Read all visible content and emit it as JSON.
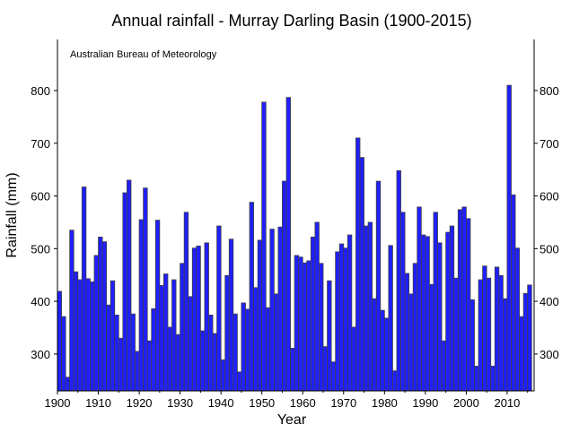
{
  "chart_data": {
    "type": "bar",
    "title": "Annual rainfall - Murray Darling Basin (1900-2015)",
    "annotation": "Australian Bureau of Meteorology",
    "xlabel": "Year",
    "ylabel": "Rainfall (mm)",
    "xlim": [
      1900,
      2016.6
    ],
    "ylim": [
      230,
      897
    ],
    "xticks": [
      1900,
      1910,
      1920,
      1930,
      1940,
      1950,
      1960,
      1970,
      1980,
      1990,
      2000,
      2010
    ],
    "yticks": [
      300,
      400,
      500,
      600,
      700,
      800
    ],
    "grid": false,
    "bar_color": "#1f1fff",
    "edge_color": "#404040",
    "start_year": 1900,
    "values": [
      419,
      371,
      256,
      535,
      456,
      441,
      617,
      443,
      437,
      487,
      522,
      513,
      393,
      439,
      374,
      330,
      606,
      630,
      376,
      305,
      555,
      615,
      325,
      386,
      554,
      430,
      452,
      351,
      441,
      337,
      472,
      569,
      409,
      501,
      505,
      344,
      511,
      374,
      339,
      543,
      289,
      449,
      518,
      376,
      266,
      397,
      385,
      588,
      426,
      516,
      778,
      388,
      537,
      414,
      541,
      628,
      787,
      311,
      487,
      484,
      473,
      477,
      522,
      550,
      472,
      314,
      439,
      285,
      494,
      509,
      501,
      526,
      351,
      710,
      673,
      543,
      550,
      405,
      628,
      383,
      368,
      506,
      268,
      648,
      569,
      453,
      414,
      472,
      579,
      526,
      523,
      432,
      569,
      511,
      325,
      531,
      543,
      444,
      574,
      579,
      557,
      403,
      277,
      441,
      467,
      444,
      277,
      465,
      449,
      405,
      810,
      602,
      501,
      371,
      415,
      431
    ]
  }
}
